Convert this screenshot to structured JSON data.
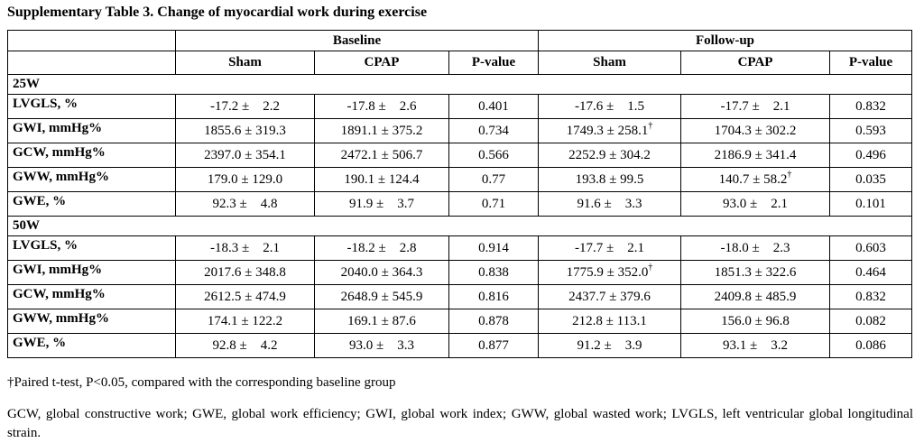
{
  "title": "Supplementary Table 3. Change of myocardial work during exercise",
  "table": {
    "group_headers": {
      "baseline": "Baseline",
      "followup": "Follow-up"
    },
    "col_headers": {
      "baseline_sham": "Sham",
      "baseline_cpap": "CPAP",
      "baseline_pvalue": "P-value",
      "followup_sham": "Sham",
      "followup_cpap": "CPAP",
      "followup_pvalue": "P-value"
    },
    "sections": [
      {
        "label": "25W",
        "rows": [
          {
            "label": "LVGLS, %",
            "cells": [
              {
                "t": "-17.2 ±    2.2"
              },
              {
                "t": "-17.8 ±    2.6"
              },
              {
                "t": "0.401"
              },
              {
                "t": "-17.6 ±    1.5"
              },
              {
                "t": "-17.7 ±    2.1"
              },
              {
                "t": "0.832"
              }
            ]
          },
          {
            "label": "GWI, mmHg%",
            "cells": [
              {
                "t": "1855.6 ± 319.3"
              },
              {
                "t": "1891.1 ± 375.2"
              },
              {
                "t": "0.734"
              },
              {
                "t": "1749.3 ± 258.1",
                "s": "†"
              },
              {
                "t": "1704.3 ± 302.2"
              },
              {
                "t": "0.593"
              }
            ]
          },
          {
            "label": "GCW, mmHg%",
            "cells": [
              {
                "t": "2397.0 ± 354.1"
              },
              {
                "t": "2472.1 ± 506.7"
              },
              {
                "t": "0.566"
              },
              {
                "t": "2252.9 ± 304.2"
              },
              {
                "t": "2186.9 ± 341.4"
              },
              {
                "t": "0.496"
              }
            ]
          },
          {
            "label": "GWW, mmHg%",
            "cells": [
              {
                "t": "179.0 ± 129.0"
              },
              {
                "t": "190.1 ± 124.4"
              },
              {
                "t": "0.77"
              },
              {
                "t": "193.8 ± 99.5"
              },
              {
                "t": "140.7 ± 58.2",
                "s": "†"
              },
              {
                "t": "0.035"
              }
            ]
          },
          {
            "label": "GWE, %",
            "cells": [
              {
                "t": "92.3 ±    4.8"
              },
              {
                "t": "91.9 ±    3.7"
              },
              {
                "t": "0.71"
              },
              {
                "t": "91.6 ±    3.3"
              },
              {
                "t": "93.0 ±    2.1"
              },
              {
                "t": "0.101"
              }
            ]
          }
        ]
      },
      {
        "label": "50W",
        "rows": [
          {
            "label": "LVGLS, %",
            "cells": [
              {
                "t": "-18.3 ±    2.1"
              },
              {
                "t": "-18.2 ±    2.8"
              },
              {
                "t": "0.914"
              },
              {
                "t": "-17.7 ±    2.1"
              },
              {
                "t": "-18.0 ±    2.3"
              },
              {
                "t": "0.603"
              }
            ]
          },
          {
            "label": "GWI, mmHg%",
            "cells": [
              {
                "t": "2017.6 ± 348.8"
              },
              {
                "t": "2040.0 ± 364.3"
              },
              {
                "t": "0.838"
              },
              {
                "t": "1775.9 ± 352.0",
                "s": "†"
              },
              {
                "t": "1851.3 ± 322.6"
              },
              {
                "t": "0.464"
              }
            ]
          },
          {
            "label": "GCW, mmHg%",
            "cells": [
              {
                "t": "2612.5 ± 474.9"
              },
              {
                "t": "2648.9 ± 545.9"
              },
              {
                "t": "0.816"
              },
              {
                "t": "2437.7 ± 379.6"
              },
              {
                "t": "2409.8 ± 485.9"
              },
              {
                "t": "0.832"
              }
            ]
          },
          {
            "label": "GWW, mmHg%",
            "cells": [
              {
                "t": "174.1 ± 122.2"
              },
              {
                "t": "169.1 ± 87.6"
              },
              {
                "t": "0.878"
              },
              {
                "t": "212.8 ± 113.1"
              },
              {
                "t": "156.0 ± 96.8"
              },
              {
                "t": "0.082"
              }
            ]
          },
          {
            "label": "GWE, %",
            "cells": [
              {
                "t": "92.8 ±    4.2"
              },
              {
                "t": "93.0 ±    3.3"
              },
              {
                "t": "0.877"
              },
              {
                "t": "91.2 ±    3.9"
              },
              {
                "t": "93.1 ±    3.2"
              },
              {
                "t": "0.086"
              }
            ]
          }
        ]
      }
    ]
  },
  "footnotes": {
    "dagger": "†Paired t-test, P<0.05, compared with the corresponding baseline group",
    "abbreviations": "GCW, global constructive work; GWE, global work efficiency; GWI, global work index; GWW, global wasted work; LVGLS, left ventricular global longitudinal strain."
  }
}
